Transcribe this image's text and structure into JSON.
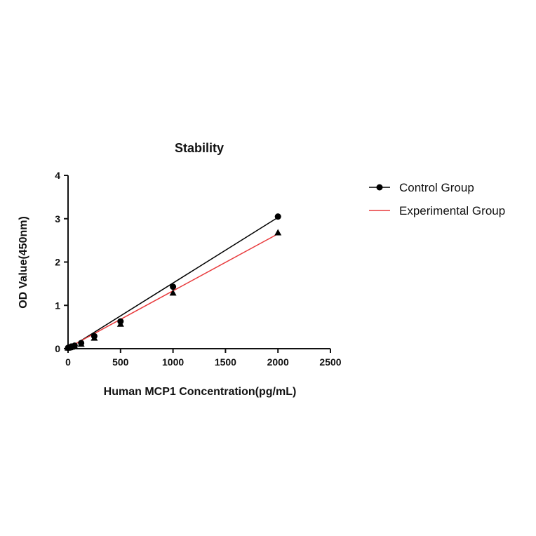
{
  "chart_data": {
    "type": "scatter",
    "title": "Stability",
    "xlabel": "Human MCP1 Concentration(pg/mL)",
    "ylabel": "OD Value(450nm)",
    "xlim": [
      0,
      2500
    ],
    "ylim": [
      0,
      4
    ],
    "xticks": [
      "0",
      "500",
      "1000",
      "1500",
      "2000",
      "2500"
    ],
    "yticks": [
      "0",
      "1",
      "2",
      "3",
      "4"
    ],
    "grid": false,
    "legend_position": "right",
    "x": [
      0,
      15.6,
      31.25,
      62.5,
      125,
      250,
      500,
      1000,
      2000
    ],
    "series": [
      {
        "name": "Control Group",
        "marker": "circle",
        "color": "#000000",
        "values": [
          0.02,
          0.03,
          0.05,
          0.07,
          0.13,
          0.29,
          0.63,
          1.43,
          3.05
        ],
        "fit": [
          [
            0,
            0.0
          ],
          [
            2000,
            3.03
          ]
        ]
      },
      {
        "name": "Experimental Group",
        "marker": "triangle",
        "color": "#e8393b",
        "values": [
          0.02,
          0.03,
          0.04,
          0.06,
          0.11,
          0.25,
          0.57,
          1.29,
          2.68
        ],
        "fit": [
          [
            0,
            0.02
          ],
          [
            2000,
            2.65
          ]
        ]
      }
    ]
  }
}
